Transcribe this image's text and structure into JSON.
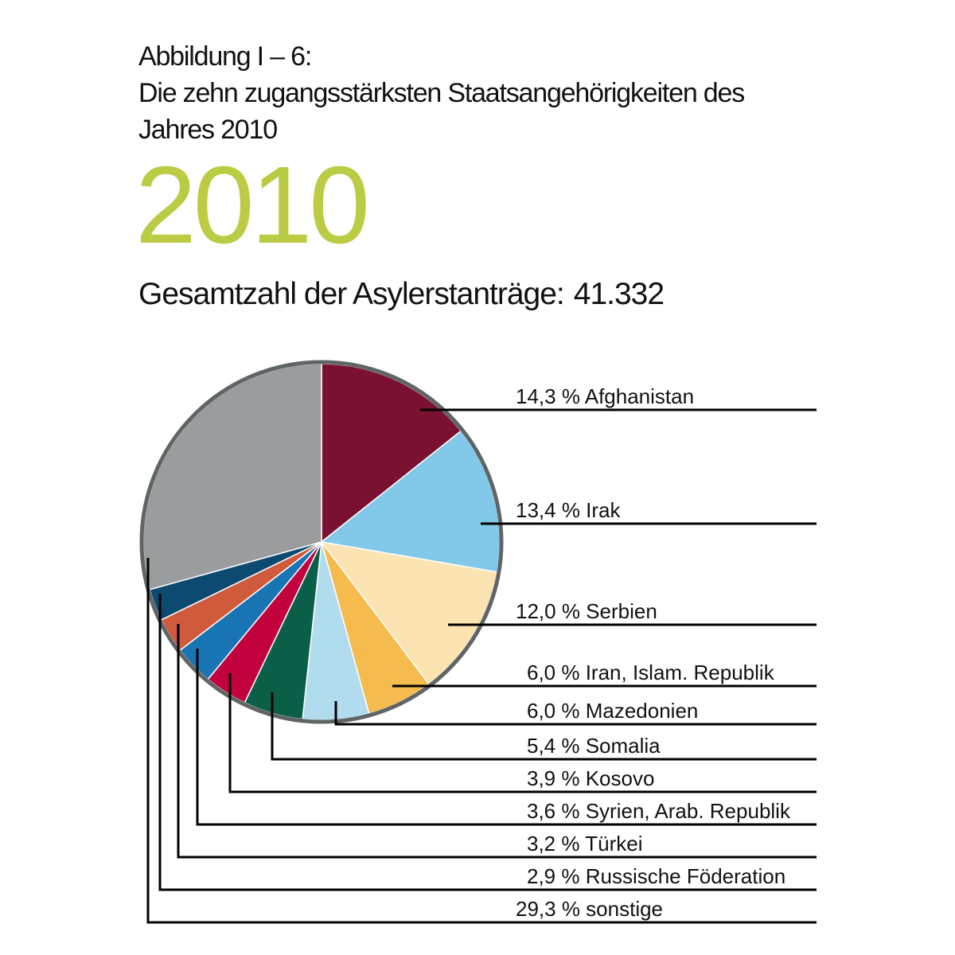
{
  "header": {
    "figure_label": "Abbildung I – 6:",
    "title_line1": "Die zehn zugangsstärksten Staatsangehörigkeiten des",
    "title_line2": "Jahres 2010",
    "year": "2010",
    "year_color": "#bccb44",
    "total_label": "Gesamtzahl der Asylerstanträge:",
    "total_value": "41.332"
  },
  "chart_data": {
    "type": "pie",
    "title": "Die zehn zugangsstärksten Staatsangehörigkeiten des Jahres 2010",
    "subtitle": "Gesamtzahl der Asylerstanträge: 41.332",
    "start_angle": "12 o'clock, clockwise",
    "categories": [
      "Afghanistan",
      "Irak",
      "Serbien",
      "Iran, Islam. Republik",
      "Mazedonien",
      "Somalia",
      "Kosovo",
      "Syrien, Arab. Republik",
      "Türkei",
      "Russische Föderation",
      "sonstige"
    ],
    "values": [
      14.3,
      13.4,
      12.0,
      6.0,
      6.0,
      5.4,
      3.9,
      3.6,
      3.2,
      2.9,
      29.3
    ],
    "labels": [
      "14,3 % Afghanistan",
      "13,4 % Irak",
      "12,0 % Serbien",
      "6,0 % Iran, Islam. Republik",
      "6,0 % Mazedonien",
      "5,4 % Somalia",
      "3,9 % Kosovo",
      "3,6 % Syrien, Arab. Republik",
      "3,2 % Türkei",
      "2,9 % Russische Föderation",
      "29,3 % sonstige"
    ],
    "colors": [
      "#7a1130",
      "#82c8e8",
      "#fbe3b2",
      "#f5bb4e",
      "#b1dcee",
      "#0b5e47",
      "#c2023f",
      "#1974b4",
      "#cf5a3c",
      "#0c4a72",
      "#9b9c9e"
    ],
    "unit": "%",
    "legend_position": "right, leader lines"
  }
}
